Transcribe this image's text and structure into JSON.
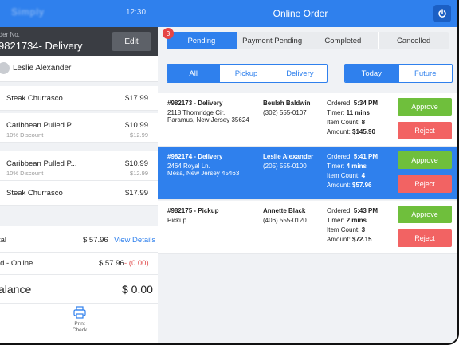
{
  "topbar": {
    "time": "12:30",
    "title": "Online Order",
    "logo": "Simply"
  },
  "order": {
    "label": "rder No.",
    "number": "9821734-  Delivery",
    "edit_label": "Edit",
    "customer": "Leslie Alexander",
    "items": [
      {
        "name": "Steak Churrasco",
        "price": "$17.99",
        "sub": "",
        "subprice": ""
      },
      {
        "name": "Caribbean Pulled P...",
        "price": "$10.99",
        "sub": "10% Discount",
        "subprice": "$12.99"
      },
      {
        "name": "Caribbean Pulled P...",
        "price": "$10.99",
        "sub": "10% Discount",
        "subprice": "$12.99"
      },
      {
        "name": "Steak Churrasco",
        "price": "$17.99",
        "sub": "",
        "subprice": ""
      }
    ],
    "total_label": "tal",
    "total_value": "$ 57.96",
    "view_details": "View Details",
    "paid_label": "id - Online",
    "paid_value": "$ 57.96",
    "paid_change": " - (0.00)",
    "balance_label": "alance",
    "balance_value": "$ 0.00",
    "print_label_1": "Print",
    "print_label_2": "Check"
  },
  "tabs": [
    {
      "label": "Pending",
      "active": true,
      "badge": "3"
    },
    {
      "label": "Payment Pending"
    },
    {
      "label": "Completed"
    },
    {
      "label": "Cancelled"
    }
  ],
  "filters": {
    "all": "All",
    "pickup": "Pickup",
    "delivery": "Delivery",
    "today": "Today",
    "future": "Future"
  },
  "orders": [
    {
      "id": "#982173 - Delivery",
      "addr1": "2118 Thornridge Cir.",
      "addr2": "Paramus, New Jersey 35624",
      "customer": "Beulah Baldwin",
      "phone": "(302) 555-0107",
      "ordered_label": "Ordered: ",
      "ordered": "5:34 PM",
      "timer_label": "Timer: ",
      "timer": "11 mins",
      "count_label": "Item Count: ",
      "count": "8",
      "amount_label": "Amount: ",
      "amount": "$145.90",
      "selected": false
    },
    {
      "id": "#982174 - Delivery",
      "addr1": "2464 Royal Ln.",
      "addr2": "Mesa, New Jersey 45463",
      "customer": "Leslie Alexander",
      "phone": "(205) 555-0100",
      "ordered_label": "Ordered: ",
      "ordered": "5:41 PM",
      "timer_label": "Timer: ",
      "timer": "4 mins",
      "count_label": "Item Count: ",
      "count": "4",
      "amount_label": "Amount: ",
      "amount": "$57.96",
      "selected": true
    },
    {
      "id": "#982175 - Pickup",
      "addr1": "Pickup",
      "addr2": "",
      "customer": "Annette Black",
      "phone": "(406) 555-0120",
      "ordered_label": "Ordered: ",
      "ordered": "5:43 PM",
      "timer_label": "Timer: ",
      "timer": "2 mins",
      "count_label": "Item Count: ",
      "count": "3",
      "amount_label": "Amount: ",
      "amount": "$72.15",
      "selected": false
    }
  ],
  "actions": {
    "approve": "Approve",
    "reject": "Reject"
  },
  "colors": {
    "primary": "#2f80ed",
    "approve": "#6fbf3c",
    "reject": "#f26363",
    "badge": "#e64545"
  }
}
